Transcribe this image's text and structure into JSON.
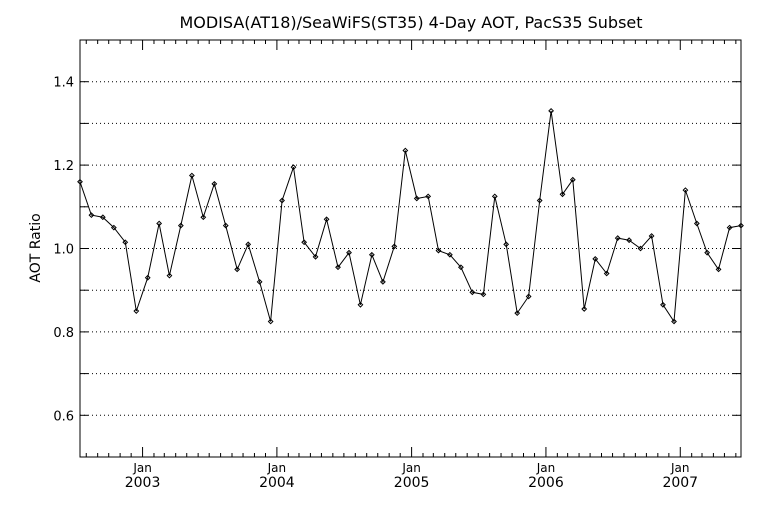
{
  "chart_data": {
    "type": "line",
    "title": "MODISA(AT18)/SeaWiFS(ST35) 4-Day AOT, PacS35 Subset",
    "xlabel": "",
    "ylabel": "AOT Ratio",
    "ylim": [
      0.5,
      1.5
    ],
    "xlim": [
      "2002-07-15",
      "2007-06-15"
    ],
    "grid": true,
    "y_ticks": [
      "0.6",
      "0.8",
      "1.0",
      "1.2",
      "1.4"
    ],
    "x_ticks": [
      {
        "date": "2003-01-01",
        "month": "Jan",
        "year": "2003"
      },
      {
        "date": "2004-01-01",
        "month": "Jan",
        "year": "2004"
      },
      {
        "date": "2005-01-01",
        "month": "Jan",
        "year": "2005"
      },
      {
        "date": "2006-01-01",
        "month": "Jan",
        "year": "2006"
      },
      {
        "date": "2007-01-01",
        "month": "Jan",
        "year": "2007"
      }
    ],
    "x": [
      "2002-07-15",
      "2002-08-15",
      "2002-09-15",
      "2002-10-15",
      "2002-11-15",
      "2002-12-15",
      "2003-01-15",
      "2003-02-15",
      "2003-03-15",
      "2003-04-15",
      "2003-05-15",
      "2003-06-15",
      "2003-07-15",
      "2003-08-15",
      "2003-09-15",
      "2003-10-15",
      "2003-11-15",
      "2003-12-15",
      "2004-01-15",
      "2004-02-15",
      "2004-03-15",
      "2004-04-15",
      "2004-05-15",
      "2004-06-15",
      "2004-07-15",
      "2004-08-15",
      "2004-09-15",
      "2004-10-15",
      "2004-11-15",
      "2004-12-15",
      "2005-01-15",
      "2005-02-15",
      "2005-03-15",
      "2005-04-15",
      "2005-05-15",
      "2005-06-15",
      "2005-07-15",
      "2005-08-15",
      "2005-09-15",
      "2005-10-15",
      "2005-11-15",
      "2005-12-15",
      "2006-01-15",
      "2006-02-15",
      "2006-03-15",
      "2006-04-15",
      "2006-05-15",
      "2006-06-15",
      "2006-07-15",
      "2006-08-15",
      "2006-09-15",
      "2006-10-15",
      "2006-11-15",
      "2006-12-15",
      "2007-01-15",
      "2007-02-15",
      "2007-03-15",
      "2007-04-15",
      "2007-05-15",
      "2007-06-15"
    ],
    "values": [
      1.16,
      1.08,
      1.075,
      1.05,
      1.015,
      0.85,
      0.93,
      1.06,
      0.935,
      1.055,
      1.175,
      1.075,
      1.155,
      1.055,
      0.95,
      1.01,
      0.92,
      0.825,
      1.115,
      1.195,
      1.015,
      0.98,
      1.07,
      0.955,
      0.99,
      0.865,
      0.985,
      0.92,
      1.005,
      1.235,
      1.12,
      1.125,
      0.995,
      0.985,
      0.955,
      0.895,
      0.89,
      1.125,
      1.01,
      0.845,
      0.885,
      1.115,
      1.33,
      1.13,
      1.165,
      0.855,
      0.975,
      0.94,
      1.025,
      1.02,
      1.0,
      1.03,
      0.865,
      0.825,
      1.14,
      1.06,
      0.99,
      0.95,
      1.05,
      1.055
    ]
  }
}
